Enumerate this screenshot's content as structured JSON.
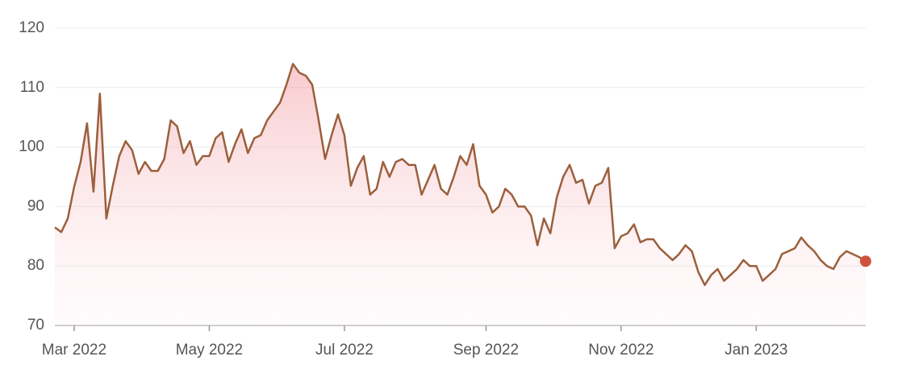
{
  "chart_data": {
    "type": "line",
    "categories": [
      null,
      null,
      null,
      "Mar 2022",
      null,
      null,
      null,
      null,
      null,
      null,
      null,
      null,
      null,
      null,
      null,
      null,
      null,
      null,
      null,
      null,
      null,
      null,
      null,
      null,
      "May 2022",
      null,
      null,
      null,
      null,
      null,
      null,
      null,
      null,
      null,
      null,
      null,
      null,
      null,
      null,
      null,
      null,
      null,
      null,
      null,
      null,
      "Jul 2022",
      null,
      null,
      null,
      null,
      null,
      null,
      null,
      null,
      null,
      null,
      null,
      null,
      null,
      null,
      null,
      null,
      null,
      null,
      null,
      null,
      null,
      "Sep 2022",
      null,
      null,
      null,
      null,
      null,
      null,
      null,
      null,
      null,
      null,
      null,
      null,
      null,
      null,
      null,
      null,
      null,
      null,
      null,
      null,
      "Nov 2022",
      null,
      null,
      null,
      null,
      null,
      null,
      null,
      null,
      null,
      null,
      null,
      null,
      null,
      null,
      null,
      null,
      null,
      null,
      null,
      null,
      "Jan 2023",
      null,
      null,
      null,
      null,
      null,
      null,
      null,
      null,
      null,
      null,
      null,
      null,
      null,
      null,
      null,
      null,
      null
    ],
    "values": [
      86.5,
      85.7,
      88,
      93.3,
      97.5,
      104,
      92.5,
      109,
      88,
      93.5,
      98.5,
      101,
      99.5,
      95.5,
      97.5,
      96,
      96,
      98,
      104.5,
      103.5,
      99,
      101,
      97,
      98.5,
      98.5,
      101.5,
      102.5,
      97.5,
      100.5,
      103,
      99,
      101.5,
      102,
      104.5,
      106,
      107.5,
      110.5,
      114,
      112.5,
      112,
      110.5,
      104.5,
      98,
      102,
      105.5,
      102,
      93.5,
      96.5,
      98.5,
      92,
      93,
      97.5,
      95,
      97.5,
      98,
      97,
      97,
      92,
      94.5,
      97,
      93,
      92,
      95,
      98.5,
      97,
      100.5,
      93.5,
      92,
      89,
      90,
      93,
      92,
      90,
      90,
      88.5,
      83.5,
      88,
      85.5,
      91.5,
      95,
      97,
      94,
      94.5,
      90.5,
      93.5,
      94,
      96.5,
      83,
      85,
      85.5,
      87,
      84,
      84.5,
      84.5,
      83,
      82,
      81,
      82,
      83.5,
      82.5,
      79,
      76.8,
      78.5,
      79.5,
      77.5,
      78.5,
      79.5,
      81,
      80,
      80,
      77.5,
      78.5,
      79.5,
      82,
      82.5,
      83,
      84.8,
      83.5,
      82.5,
      81,
      80,
      79.5,
      81.5,
      82.5,
      82,
      81.5,
      80.8
    ],
    "color": "#9c5f3c",
    "end_marker_color": "#d0523c",
    "ylim": [
      70,
      120
    ],
    "yticks": [
      70,
      80,
      90,
      100,
      110,
      120
    ],
    "grid": true
  }
}
